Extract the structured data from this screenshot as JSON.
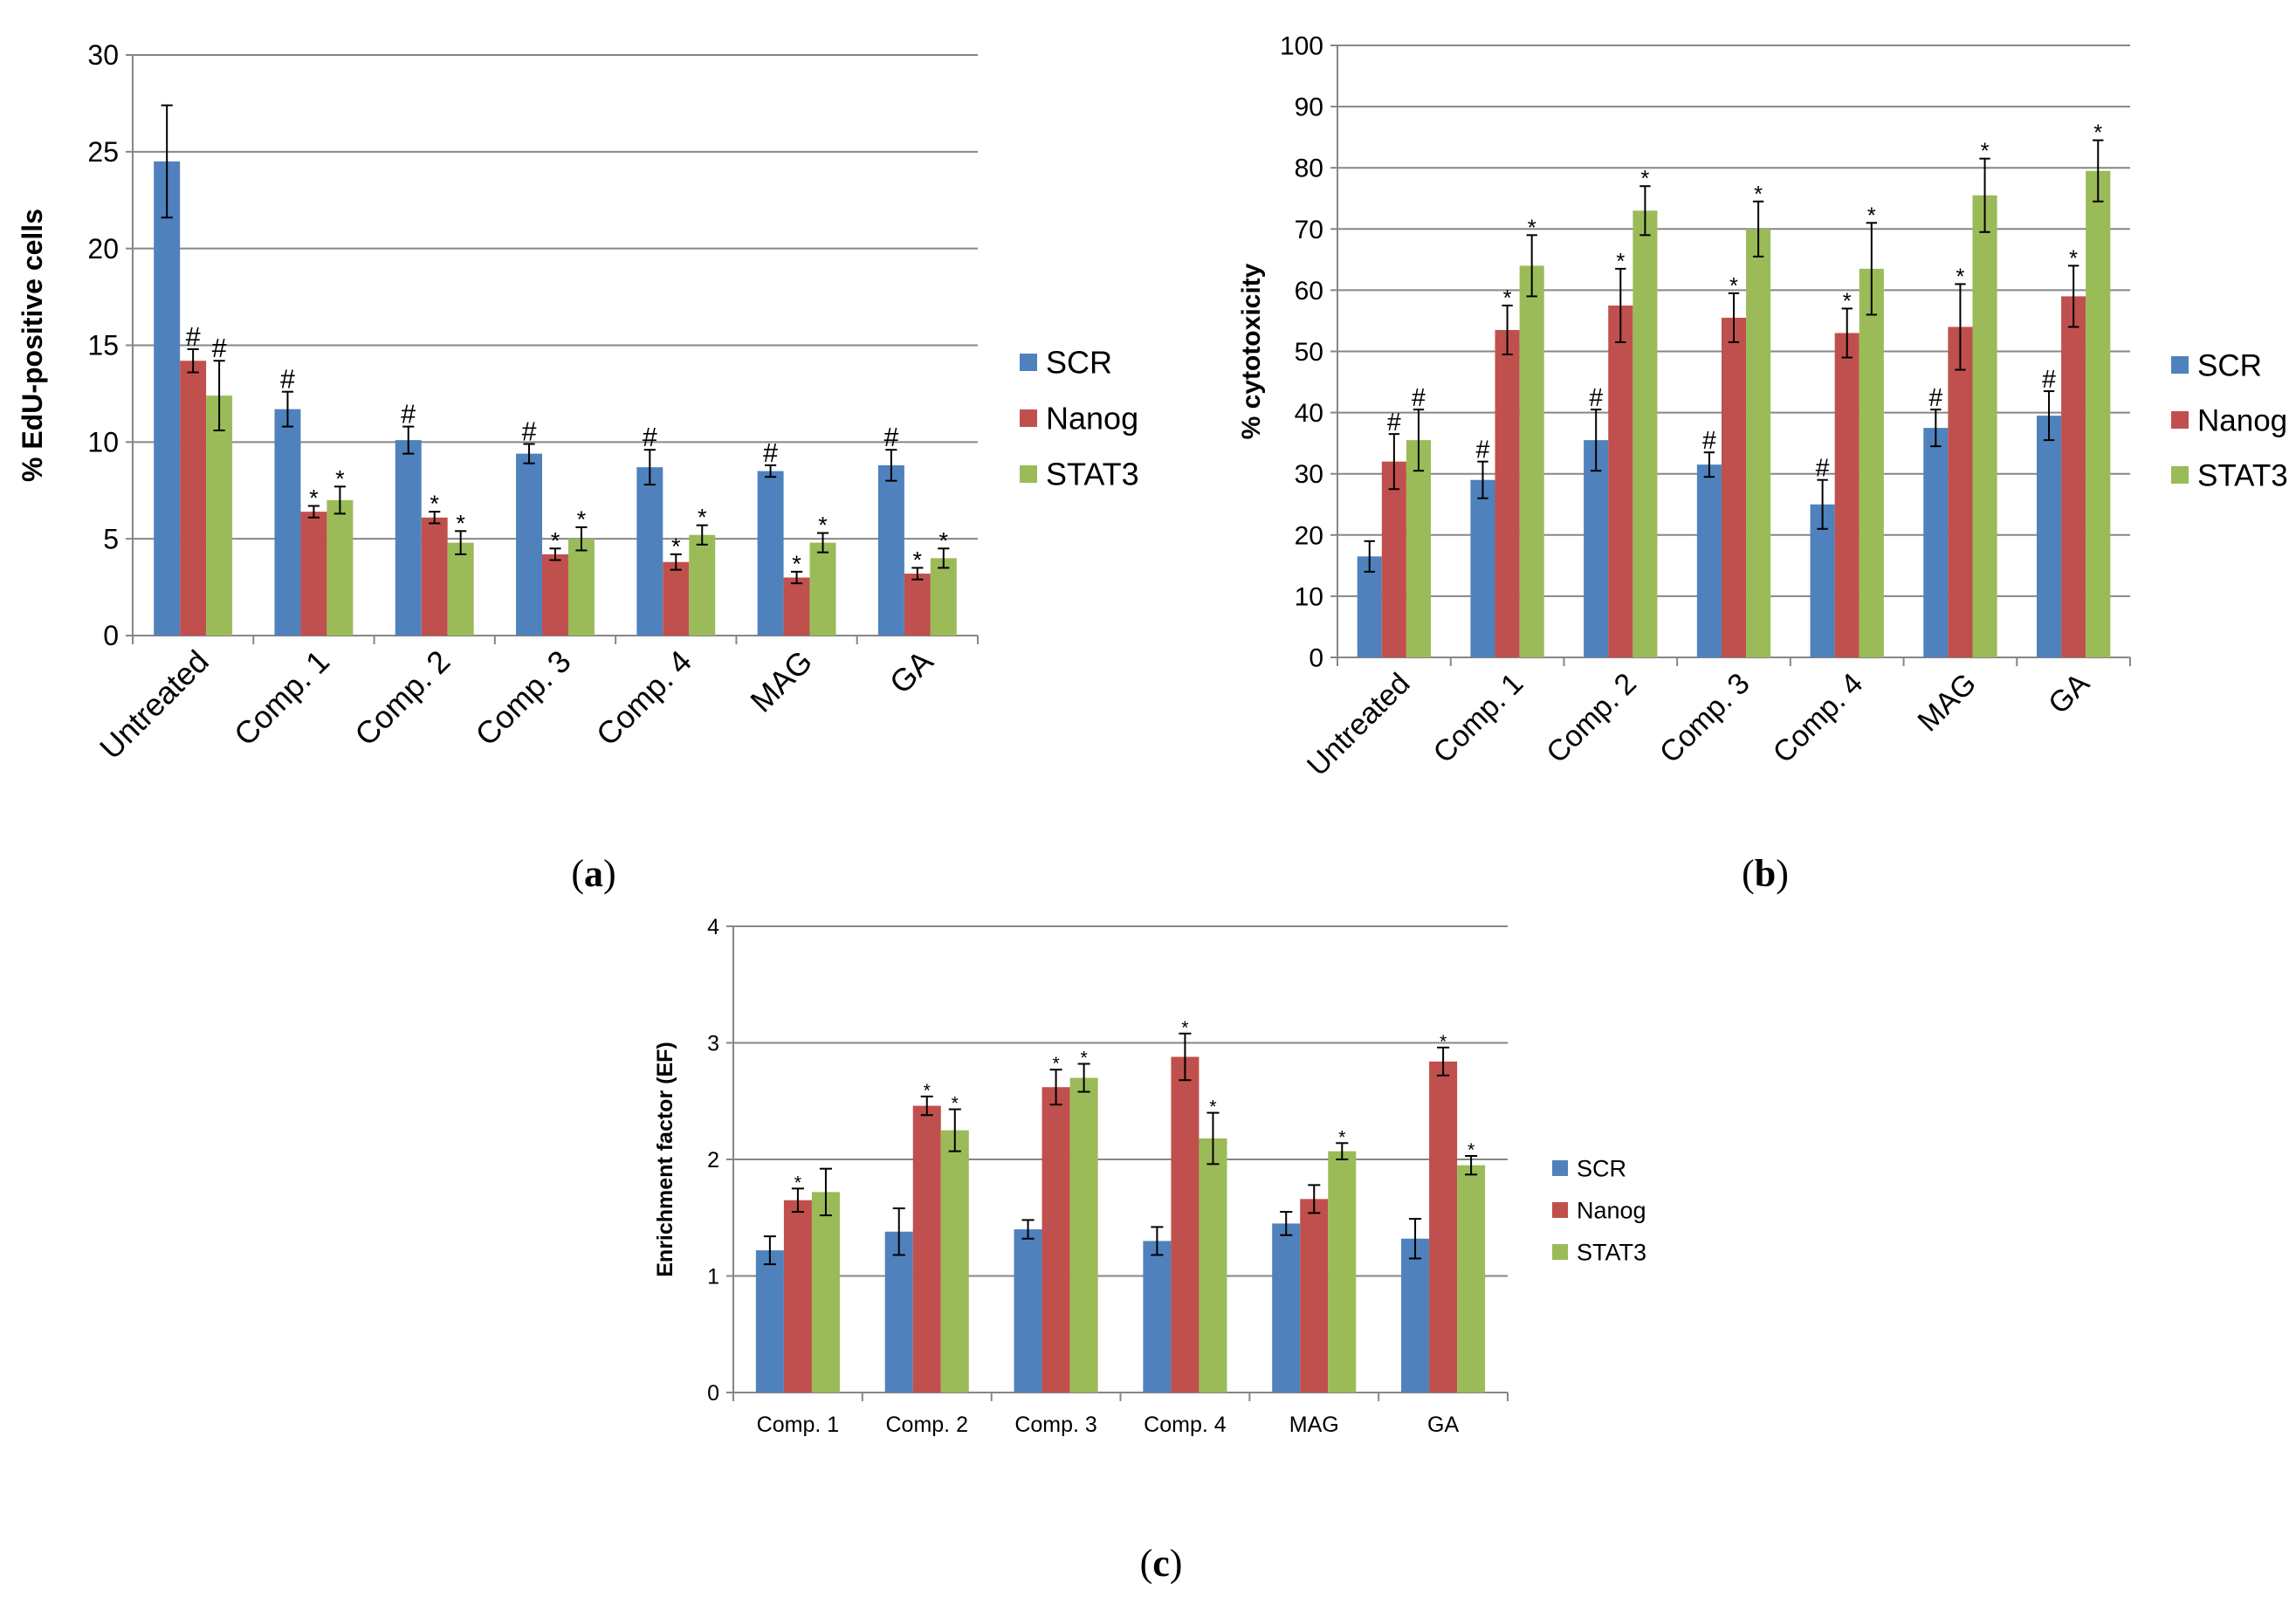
{
  "colors": {
    "SCR": "#4f81bd",
    "Nanog": "#c0504d",
    "STAT3": "#9bbb59",
    "grid": "#868686",
    "axis": "#868686",
    "error": "#000000"
  },
  "series_names": [
    "SCR",
    "Nanog",
    "STAT3"
  ],
  "chart_data": [
    {
      "id": "a",
      "panel_label": "a",
      "type": "bar",
      "title": "",
      "xlabel": "",
      "ylabel": "% EdU-positive cells",
      "ylim": [
        0,
        30
      ],
      "yticks": [
        "0",
        "5",
        "10",
        "15",
        "20",
        "25",
        "30"
      ],
      "grid": true,
      "legend_position": "right",
      "categories": [
        "Untreated",
        "Comp. 1",
        "Comp. 2",
        "Comp. 3",
        "Comp. 4",
        "MAG",
        "GA"
      ],
      "series": [
        {
          "name": "SCR",
          "values": [
            24.5,
            11.7,
            10.1,
            9.4,
            8.7,
            8.5,
            8.8
          ],
          "errors": [
            2.9,
            0.9,
            0.7,
            0.5,
            0.9,
            0.3,
            0.8
          ],
          "annotations": [
            "",
            "#",
            "#",
            "#",
            "#",
            "#",
            "#"
          ]
        },
        {
          "name": "Nanog",
          "values": [
            14.2,
            6.4,
            6.1,
            4.2,
            3.8,
            3.0,
            3.2
          ],
          "errors": [
            0.6,
            0.3,
            0.3,
            0.3,
            0.4,
            0.3,
            0.3
          ],
          "annotations": [
            "#",
            "*",
            "*",
            "*",
            "*",
            "*",
            "*"
          ]
        },
        {
          "name": "STAT3",
          "values": [
            12.4,
            7.0,
            4.8,
            5.0,
            5.2,
            4.8,
            4.0
          ],
          "errors": [
            1.8,
            0.7,
            0.6,
            0.6,
            0.5,
            0.5,
            0.5
          ],
          "annotations": [
            "#",
            "*",
            "*",
            "*",
            "*",
            "*",
            "*"
          ]
        }
      ]
    },
    {
      "id": "b",
      "panel_label": "b",
      "type": "bar",
      "title": "",
      "xlabel": "",
      "ylabel": "% cytotoxicity",
      "ylim": [
        0,
        100
      ],
      "yticks": [
        "0",
        "10",
        "20",
        "30",
        "40",
        "50",
        "60",
        "70",
        "80",
        "90",
        "100"
      ],
      "grid": true,
      "legend_position": "right",
      "categories": [
        "Untreated",
        "Comp. 1",
        "Comp. 2",
        "Comp. 3",
        "Comp. 4",
        "MAG",
        "GA"
      ],
      "series": [
        {
          "name": "SCR",
          "values": [
            16.5,
            29.0,
            35.5,
            31.5,
            25.0,
            37.5,
            39.5
          ],
          "errors": [
            2.5,
            3.0,
            5.0,
            2.0,
            4.0,
            3.0,
            4.0
          ],
          "annotations": [
            "",
            "#",
            "#",
            "#",
            "#",
            "#",
            "#"
          ]
        },
        {
          "name": "Nanog",
          "values": [
            32.0,
            53.5,
            57.5,
            55.5,
            53.0,
            54.0,
            59.0
          ],
          "errors": [
            4.5,
            4.0,
            6.0,
            4.0,
            4.0,
            7.0,
            5.0
          ],
          "annotations": [
            "#",
            "*",
            "*",
            "*",
            "*",
            "*",
            "*"
          ]
        },
        {
          "name": "STAT3",
          "values": [
            35.5,
            64.0,
            73.0,
            70.0,
            63.5,
            75.5,
            79.5
          ],
          "errors": [
            5.0,
            5.0,
            4.0,
            4.5,
            7.5,
            6.0,
            5.0
          ],
          "annotations": [
            "#",
            "*",
            "*",
            "*",
            "*",
            "*",
            "*"
          ]
        }
      ]
    },
    {
      "id": "c",
      "panel_label": "c",
      "type": "bar",
      "title": "",
      "xlabel": "",
      "ylabel": "Enrichment factor (EF)",
      "ylim": [
        0,
        4
      ],
      "yticks": [
        "0",
        "1",
        "2",
        "3",
        "4"
      ],
      "grid": true,
      "legend_position": "right",
      "categories": [
        "Comp. 1",
        "Comp. 2",
        "Comp. 3",
        "Comp. 4",
        "MAG",
        "GA"
      ],
      "series": [
        {
          "name": "SCR",
          "values": [
            1.22,
            1.38,
            1.4,
            1.3,
            1.45,
            1.32
          ],
          "errors": [
            0.12,
            0.2,
            0.08,
            0.12,
            0.1,
            0.17
          ],
          "annotations": [
            "",
            "",
            "",
            "",
            "",
            ""
          ]
        },
        {
          "name": "Nanog",
          "values": [
            1.65,
            2.46,
            2.62,
            2.88,
            1.66,
            2.84
          ],
          "errors": [
            0.1,
            0.08,
            0.15,
            0.2,
            0.12,
            0.12
          ],
          "annotations": [
            "*",
            "*",
            "*",
            "*",
            "",
            "*"
          ]
        },
        {
          "name": "STAT3",
          "values": [
            1.72,
            2.25,
            2.7,
            2.18,
            2.07,
            1.95
          ],
          "errors": [
            0.2,
            0.18,
            0.12,
            0.22,
            0.07,
            0.08
          ],
          "annotations": [
            "",
            "*",
            "*",
            "*",
            "*",
            "*"
          ]
        }
      ]
    }
  ]
}
